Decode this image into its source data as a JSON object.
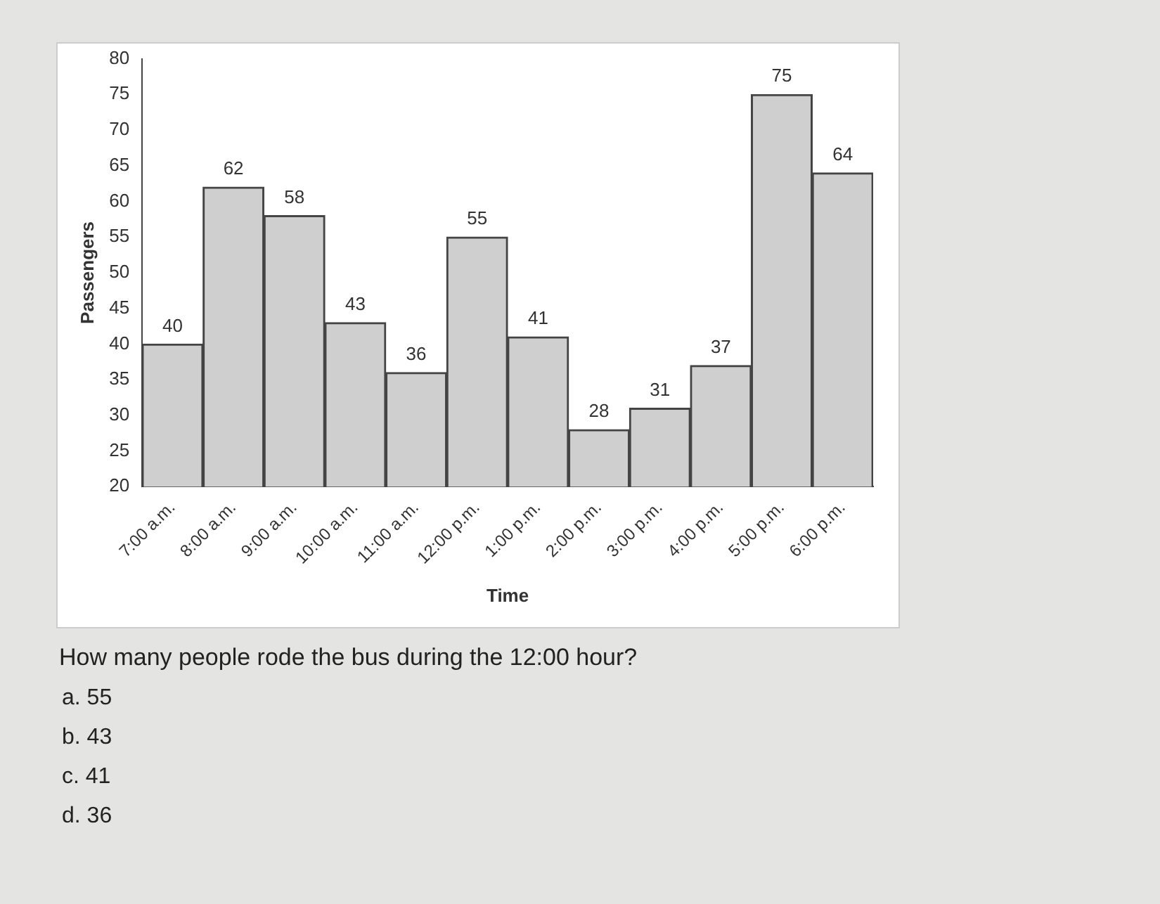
{
  "chart_data": {
    "type": "bar",
    "xlabel": "Time",
    "ylabel": "Passengers",
    "categories": [
      "7:00 a.m.",
      "8:00 a.m.",
      "9:00 a.m.",
      "10:00 a.m.",
      "11:00 a.m.",
      "12:00 p.m.",
      "1:00 p.m.",
      "2:00 p.m.",
      "3:00 p.m.",
      "4:00 p.m.",
      "5:00 p.m.",
      "6:00 p.m."
    ],
    "values": [
      40,
      62,
      58,
      43,
      36,
      55,
      41,
      28,
      31,
      37,
      75,
      64
    ],
    "color": "#cfcfcf",
    "ylim": [
      20,
      80
    ],
    "yticks": [
      20,
      25,
      30,
      35,
      40,
      45,
      50,
      55,
      60,
      65,
      70,
      75,
      80
    ],
    "grid": false,
    "legend": false,
    "data_labels": true,
    "annotations": [
      "How many people rode the bus during the 12:00 hour?",
      "a.  55",
      "b.  43",
      "c.  41",
      "d.  36"
    ]
  }
}
